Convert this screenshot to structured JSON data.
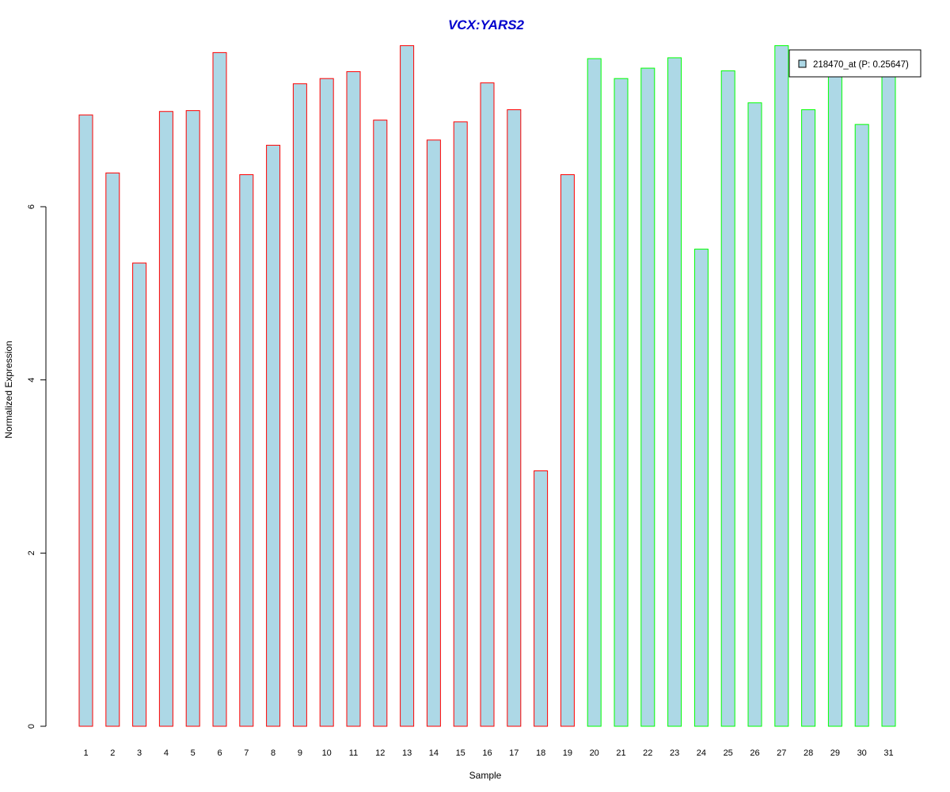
{
  "chart_data": {
    "type": "bar",
    "title": "VCX:YARS2",
    "xlabel": "Sample",
    "ylabel": "Normalized Expression",
    "ylim": [
      0,
      7.8
    ],
    "yticks": [
      0,
      2,
      4,
      6
    ],
    "grid": false,
    "legend_position": "top-right",
    "legend": "218470_at (P: 0.25647)",
    "categories": [
      "1",
      "2",
      "3",
      "4",
      "5",
      "6",
      "7",
      "8",
      "9",
      "10",
      "11",
      "12",
      "13",
      "14",
      "15",
      "16",
      "17",
      "18",
      "19",
      "20",
      "21",
      "22",
      "23",
      "24",
      "25",
      "26",
      "27",
      "28",
      "29",
      "30",
      "31"
    ],
    "values": [
      7.06,
      6.39,
      5.35,
      7.1,
      7.11,
      7.78,
      6.37,
      6.71,
      7.42,
      7.48,
      7.56,
      7.0,
      7.86,
      6.77,
      6.98,
      7.43,
      7.12,
      2.95,
      6.37,
      7.71,
      7.48,
      7.6,
      7.72,
      5.51,
      7.57,
      7.2,
      7.86,
      7.12,
      7.6,
      6.95,
      7.8
    ],
    "groups": [
      "red",
      "red",
      "red",
      "red",
      "red",
      "red",
      "red",
      "red",
      "red",
      "red",
      "red",
      "red",
      "red",
      "red",
      "red",
      "red",
      "red",
      "red",
      "red",
      "green",
      "green",
      "green",
      "green",
      "green",
      "green",
      "green",
      "green",
      "green",
      "green",
      "green",
      "green"
    ],
    "colors": {
      "fill": "#add8e6",
      "group_a_border": "#ff0000",
      "group_b_border": "#00ff00",
      "title": "#0000cd",
      "axis": "#000000"
    }
  }
}
